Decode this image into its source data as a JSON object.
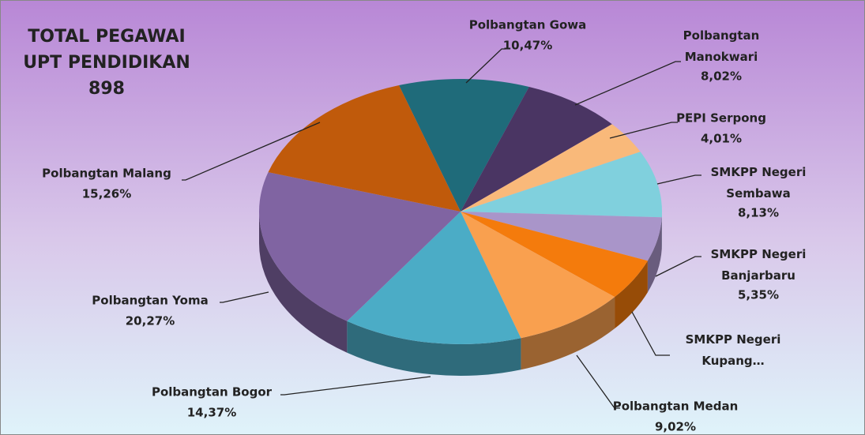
{
  "chart_data": {
    "type": "pie",
    "title_lines": [
      "TOTAL PEGAWAI",
      "UPT PENDIDIKAN"
    ],
    "subtitle": "898",
    "categories": [
      "Polbangtan Gowa",
      "Polbangtan Manokwari",
      "PEPI Serpong",
      "SMKPP Negeri Sembawa",
      "SMKPP Negeri Banjarbaru",
      "SMKPP Negeri Kupang…",
      "Polbangtan Medan",
      "Polbangtan Bogor",
      "Polbangtan Yoma",
      "Polbangtan Malang"
    ],
    "values": [
      10.47,
      8.02,
      4.01,
      8.13,
      5.35,
      5.1,
      9.02,
      14.37,
      20.27,
      15.26
    ],
    "value_labels": [
      "10,47%",
      "8,02%",
      "4,01%",
      "8,13%",
      "5,35%",
      null,
      "9,02%",
      "14,37%",
      "20,27%",
      "15,26%"
    ],
    "colors": [
      "#1f6b7a",
      "#4a3563",
      "#f9b97a",
      "#80d0dd",
      "#a995c9",
      "#f47b0c",
      "#f9a04f",
      "#4bacc6",
      "#8064a2",
      "#c05a0b"
    ]
  }
}
